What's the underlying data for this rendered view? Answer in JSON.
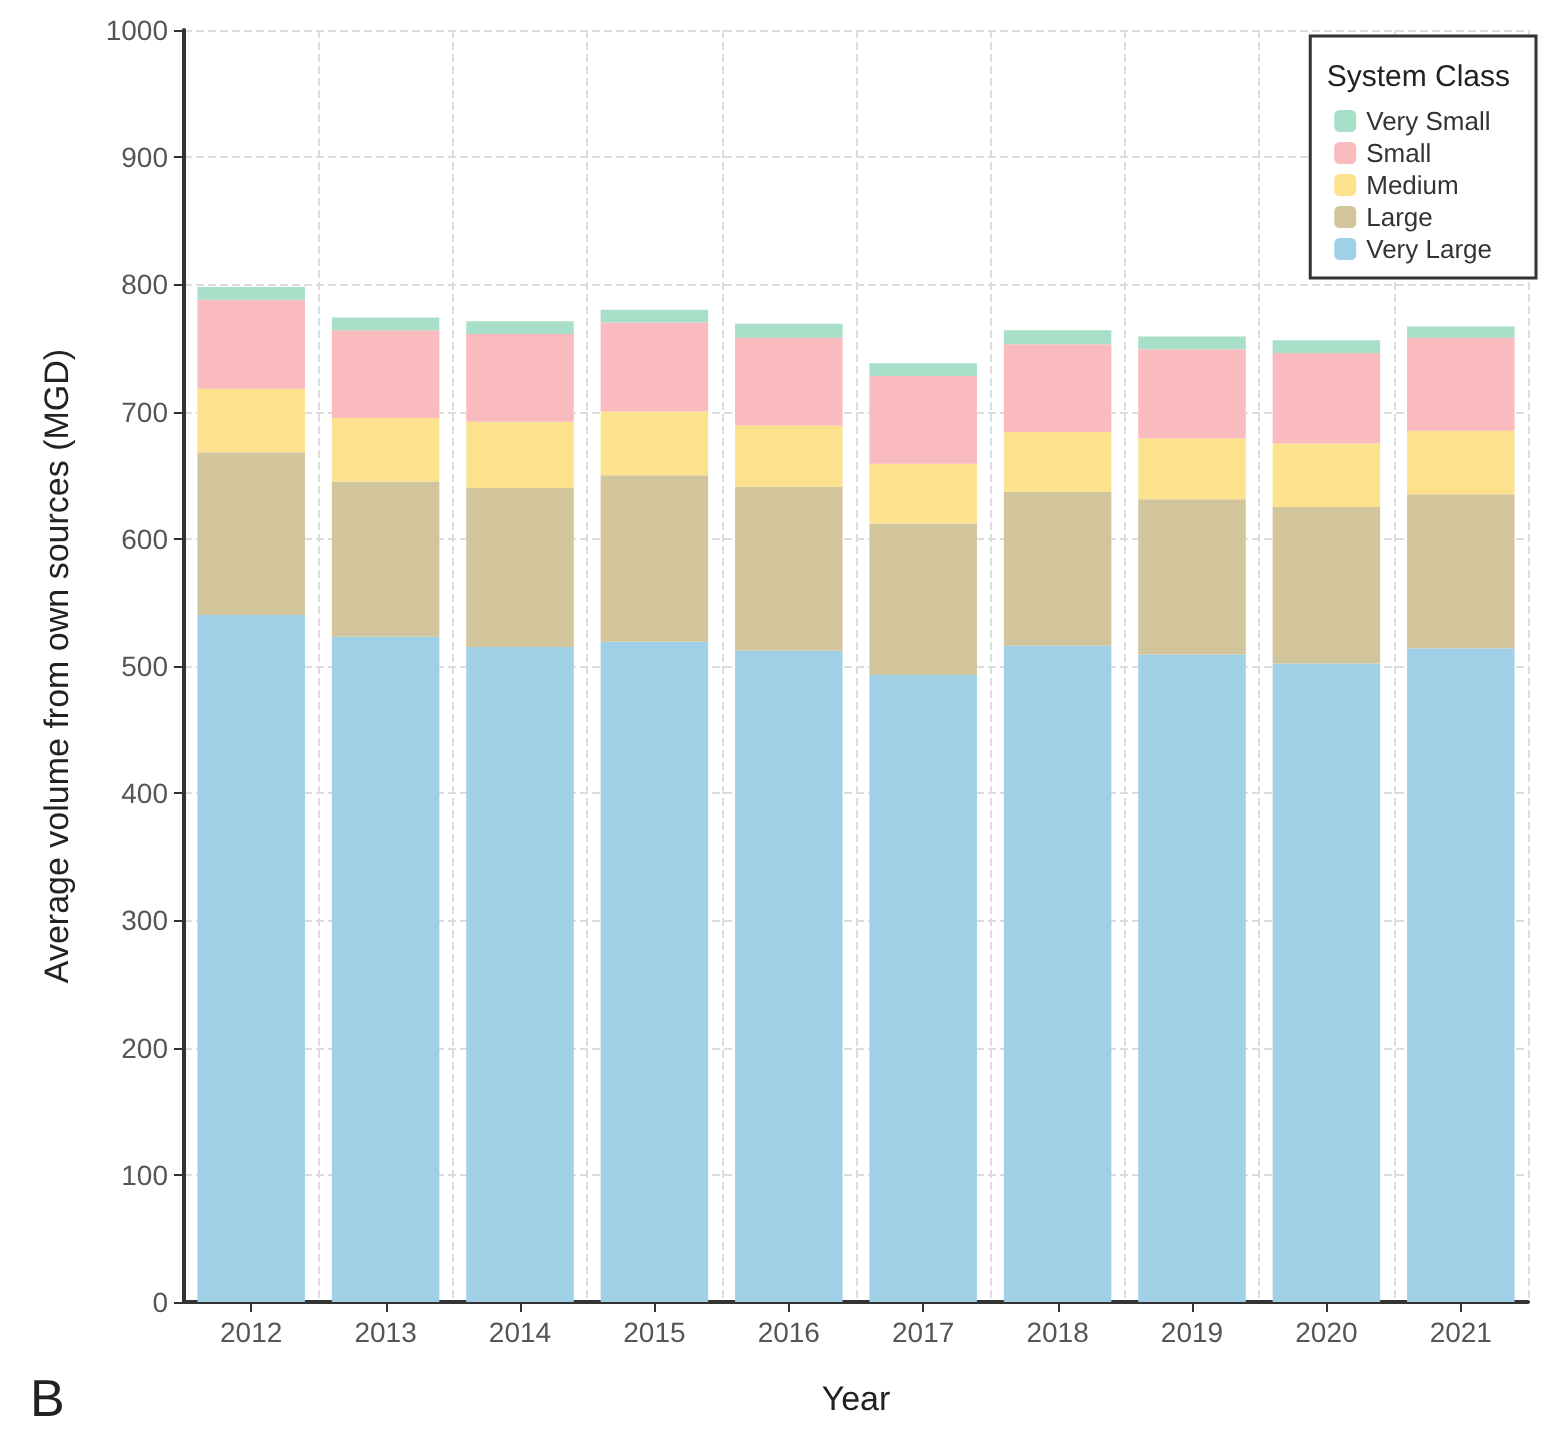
{
  "chart_data": {
    "type": "bar",
    "stacked": true,
    "xlabel": "Year",
    "ylabel": "Average volume from own sources (MGD)",
    "legend_title": "System Class",
    "categories": [
      "2012",
      "2013",
      "2014",
      "2015",
      "2016",
      "2017",
      "2018",
      "2019",
      "2020",
      "2021"
    ],
    "series": [
      {
        "name": "Very Large",
        "color": "#a0d0e6",
        "values": [
          540,
          523,
          515,
          519,
          512,
          493,
          516,
          509,
          502,
          514
        ]
      },
      {
        "name": "Large",
        "color": "#d3c59b",
        "values": [
          128,
          122,
          125,
          131,
          129,
          119,
          121,
          122,
          123,
          121
        ]
      },
      {
        "name": "Medium",
        "color": "#fde28e",
        "values": [
          50,
          50,
          52,
          50,
          48,
          47,
          47,
          48,
          50,
          50
        ]
      },
      {
        "name": "Small",
        "color": "#f9bbbd",
        "values": [
          70,
          69,
          69,
          70,
          69,
          69,
          69,
          70,
          71,
          73
        ]
      },
      {
        "name": "Very Small",
        "color": "#a8dfc9",
        "values": [
          10,
          10,
          10,
          10,
          11,
          10,
          11,
          10,
          10,
          9
        ]
      }
    ],
    "ylim": [
      0,
      1000
    ],
    "yticks": [
      0,
      100,
      200,
      300,
      400,
      500,
      600,
      700,
      800,
      900,
      1000
    ],
    "grid": true,
    "legend": "top right",
    "annotations": [
      "B"
    ]
  }
}
